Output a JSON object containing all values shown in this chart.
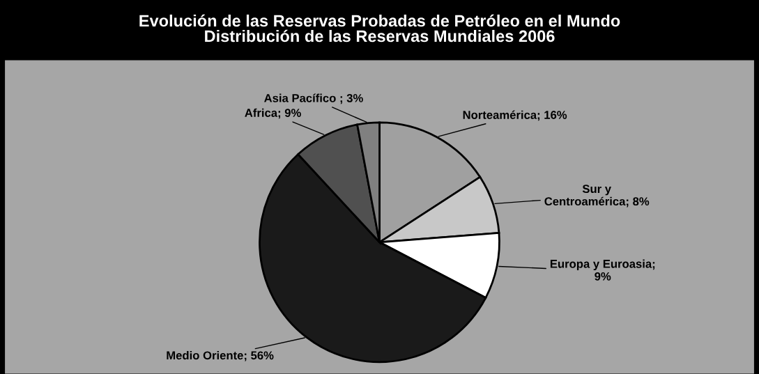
{
  "chart_data": {
    "type": "pie",
    "title": "Evolución de las Reservas Probadas de Petróleo en el Mundo\nDistribución de las Reservas Mundiales 2006",
    "categories": [
      "Norteamérica; 16%",
      "Sur y\nCentroamérica; 8%",
      "Europa y Euroasia;\n9%",
      "Medio Oriente; 56%",
      "Africa; 9%",
      "Asia Pacífico ; 3%"
    ],
    "values": [
      16,
      8,
      9,
      56,
      9,
      3
    ],
    "colors": [
      "#a0a0a0",
      "#c8c8c8",
      "#ffffff",
      "#1a1a1a",
      "#505050",
      "#808080"
    ]
  }
}
